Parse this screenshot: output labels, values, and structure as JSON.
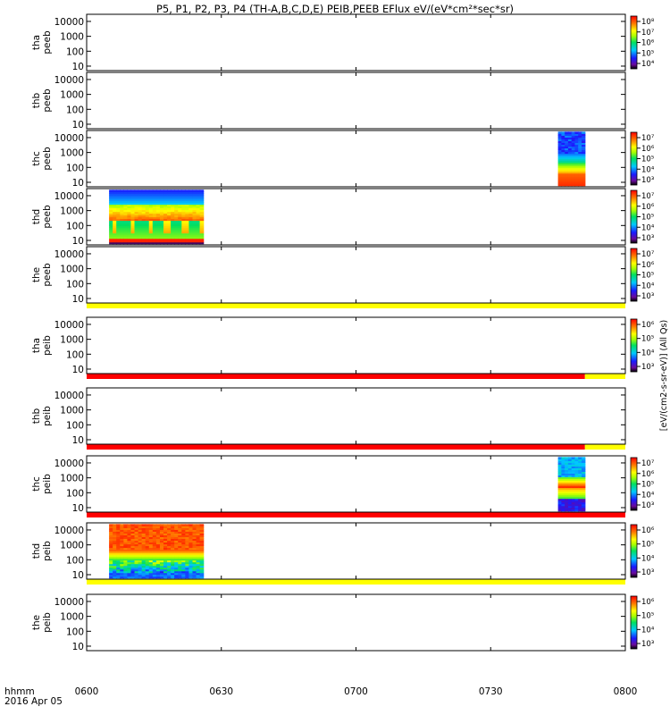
{
  "title": "P5, P1, P2, P3, P4 (TH-A,B,C,D,E) PEIB,PEEB EFlux eV/(eV*cm²*sec*sr)",
  "time_axis": {
    "label_line1": "hhmm",
    "label_line2": "2016 Apr 05",
    "ticks": [
      "0600",
      "0630",
      "0700",
      "0730",
      "0800"
    ],
    "range_minutes": [
      0,
      120
    ]
  },
  "y_ticks": [
    "10000",
    "1000",
    "100",
    "10"
  ],
  "colorbar_label": "[eV/(cm2-s-sr-eV)] (All Qs)",
  "chart_data": {
    "type": "heatmap",
    "x_unit": "time (hhmm, 2016 Apr 05)",
    "y_scale": "log",
    "ylim": [
      5,
      30000
    ],
    "colorscale": "rainbow (black-purple-blue-cyan-green-yellow-orange-red)",
    "panels": [
      {
        "name": "thap",
        "ylabel": [
          "tha",
          "peeb"
        ],
        "cbar_ticks": [
          "10⁸",
          "10⁷",
          "10⁶",
          "10⁵",
          "10⁴"
        ],
        "spectra": [],
        "flag_bar": []
      },
      {
        "name": "thbp",
        "ylabel": [
          "thb",
          "peeb"
        ],
        "cbar_ticks": [],
        "spectra": [],
        "flag_bar": []
      },
      {
        "name": "thcp",
        "ylabel": [
          "thc",
          "peeb"
        ],
        "cbar_ticks": [
          "10⁷",
          "10⁶",
          "10⁵",
          "10⁴",
          "10³"
        ],
        "spectra": [
          {
            "start": "0745",
            "end": "0751",
            "pattern": "electron_c"
          }
        ],
        "flag_bar": []
      },
      {
        "name": "thdp",
        "ylabel": [
          "thd",
          "peeb"
        ],
        "cbar_ticks": [
          "10⁷",
          "10⁶",
          "10⁵",
          "10⁴",
          "10³"
        ],
        "spectra": [
          {
            "start": "0605",
            "end": "0626",
            "pattern": "electron_d"
          }
        ],
        "flag_bar": []
      },
      {
        "name": "thep",
        "ylabel": [
          "the",
          "peeb"
        ],
        "cbar_ticks": [
          "10⁷",
          "10⁶",
          "10⁵",
          "10⁴",
          "10³"
        ],
        "spectra": [],
        "flag_bar": [
          {
            "start": "0600",
            "end": "0800",
            "color": "#ffff00"
          }
        ]
      },
      {
        "name": "thai",
        "ylabel": [
          "tha",
          "peib"
        ],
        "cbar_ticks": [
          "10⁶",
          "10⁵",
          "10⁴",
          "10³"
        ],
        "spectra": [],
        "flag_bar": [
          {
            "start": "0600",
            "end": "0751",
            "color": "#ff0000"
          },
          {
            "start": "0751",
            "end": "0800",
            "color": "#ffff00"
          }
        ]
      },
      {
        "name": "thbi",
        "ylabel": [
          "thb",
          "peib"
        ],
        "cbar_ticks": [],
        "spectra": [],
        "flag_bar": [
          {
            "start": "0600",
            "end": "0751",
            "color": "#ff0000"
          },
          {
            "start": "0751",
            "end": "0800",
            "color": "#ffff00"
          }
        ]
      },
      {
        "name": "thci",
        "ylabel": [
          "thc",
          "peib"
        ],
        "cbar_ticks": [
          "10⁷",
          "10⁶",
          "10⁵",
          "10⁴",
          "10³"
        ],
        "spectra": [
          {
            "start": "0745",
            "end": "0751",
            "pattern": "ion_c"
          }
        ],
        "flag_bar": [
          {
            "start": "0600",
            "end": "0800",
            "color": "#ff0000"
          }
        ]
      },
      {
        "name": "thdi",
        "ylabel": [
          "thd",
          "peib"
        ],
        "cbar_ticks": [
          "10⁶",
          "10⁵",
          "10⁴",
          "10³"
        ],
        "spectra": [
          {
            "start": "0605",
            "end": "0626",
            "pattern": "ion_d"
          }
        ],
        "flag_bar": [
          {
            "start": "0600",
            "end": "0800",
            "color": "#ffff00"
          }
        ]
      },
      {
        "name": "thei",
        "ylabel": [
          "the",
          "peib"
        ],
        "cbar_ticks": [
          "10⁶",
          "10⁵",
          "10⁴",
          "10³"
        ],
        "spectra": [],
        "flag_bar": []
      }
    ]
  }
}
